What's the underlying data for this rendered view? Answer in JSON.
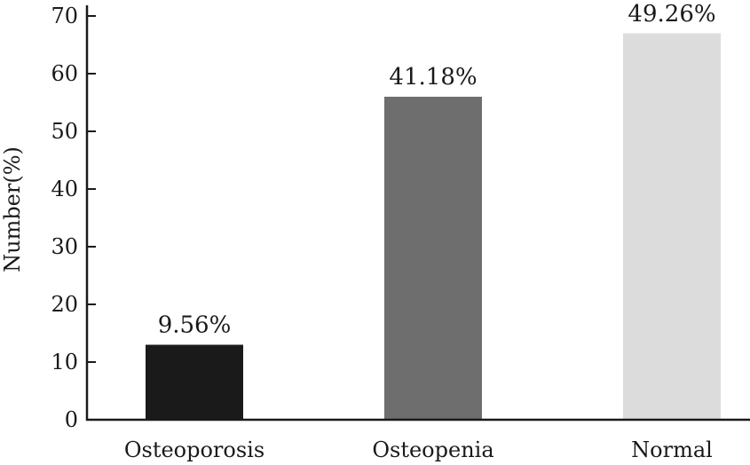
{
  "chart_data": {
    "type": "bar",
    "title": "",
    "xlabel": "",
    "ylabel": "Number(%)",
    "ylim": [
      0,
      70
    ],
    "yticks": [
      0,
      10,
      20,
      30,
      40,
      50,
      60,
      70
    ],
    "grid": false,
    "legend": "none",
    "categories": [
      "Osteoporosis",
      "Osteopenia",
      "Normal"
    ],
    "values": [
      13,
      56,
      67
    ],
    "data_labels": [
      "9.56%",
      "41.18%",
      "49.26%"
    ],
    "colors": [
      "#1a1a1a",
      "#6e6e6e",
      "#dcdcdc"
    ]
  }
}
